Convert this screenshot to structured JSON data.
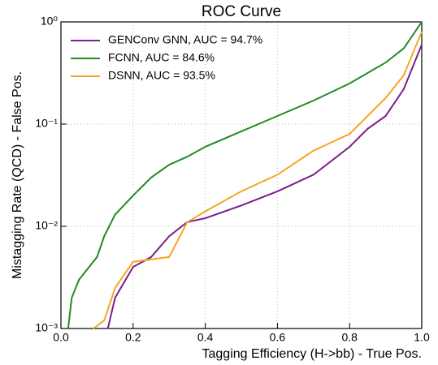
{
  "chart_data": {
    "type": "line",
    "title": "ROC Curve",
    "x_label": "Tagging Efficiency (H->bb) - True Pos.",
    "y_label": "Mistagging Rate (QCD) - False Pos.",
    "xlim": [
      0,
      1
    ],
    "ylim": [
      0.001,
      1
    ],
    "log_y": true,
    "grid": true,
    "legend": "upper-left",
    "xticks": [
      {
        "value": 0,
        "label": "0.0"
      },
      0.2,
      0.4,
      0.6,
      0.8,
      {
        "value": 1,
        "label": "1.0"
      }
    ],
    "yticks": [
      {
        "value": 0.001,
        "label": "10⁻³"
      },
      {
        "value": 0.01,
        "label": "10⁻²"
      },
      {
        "value": 0.1,
        "label": "10⁻¹"
      },
      {
        "value": 1,
        "label": "10⁰"
      }
    ],
    "series": [
      {
        "name": "GENConv GNN, AUC = 94.7%",
        "color": "#7b1f8a",
        "x": [
          0.13,
          0.15,
          0.2,
          0.25,
          0.3,
          0.35,
          0.4,
          0.5,
          0.6,
          0.7,
          0.8,
          0.85,
          0.9,
          0.95,
          0.98,
          1.0
        ],
        "values": [
          0.001,
          0.002,
          0.004,
          0.005,
          0.008,
          0.011,
          0.012,
          0.016,
          0.022,
          0.032,
          0.06,
          0.09,
          0.12,
          0.22,
          0.4,
          0.6
        ]
      },
      {
        "name": "FCNN, AUC = 84.6%",
        "color": "#228b22",
        "x": [
          0.02,
          0.03,
          0.05,
          0.1,
          0.12,
          0.15,
          0.2,
          0.25,
          0.3,
          0.35,
          0.4,
          0.5,
          0.6,
          0.7,
          0.8,
          0.9,
          0.95,
          1.0
        ],
        "values": [
          0.001,
          0.002,
          0.003,
          0.005,
          0.008,
          0.013,
          0.02,
          0.03,
          0.04,
          0.048,
          0.06,
          0.085,
          0.12,
          0.17,
          0.25,
          0.4,
          0.55,
          1.0
        ]
      },
      {
        "name": "DSNN, AUC = 93.5%",
        "color": "#f5a623",
        "x": [
          0.09,
          0.12,
          0.15,
          0.2,
          0.3,
          0.33,
          0.35,
          0.4,
          0.5,
          0.6,
          0.7,
          0.8,
          0.85,
          0.9,
          0.95,
          1.0
        ],
        "values": [
          0.001,
          0.0012,
          0.0025,
          0.0045,
          0.005,
          0.008,
          0.011,
          0.014,
          0.022,
          0.032,
          0.055,
          0.08,
          0.12,
          0.18,
          0.3,
          0.8
        ]
      }
    ]
  }
}
